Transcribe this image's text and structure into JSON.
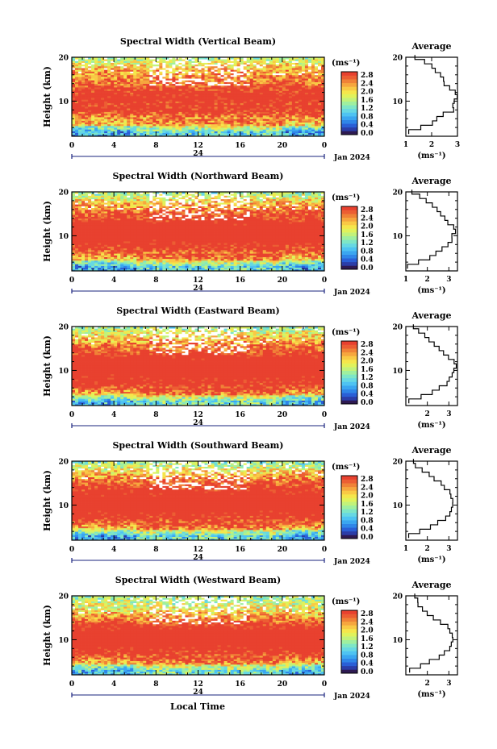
{
  "xlabel": "Local Time",
  "date_label": "Jan 2024",
  "day_label": "24",
  "colorbar": {
    "unit": "(ms⁻¹)",
    "tick_labels": [
      "2.8",
      "2.4",
      "2.0",
      "1.6",
      "1.2",
      "0.8",
      "0.4",
      "0.0"
    ],
    "colors": [
      "#2e1a52",
      "#2b3da8",
      "#2a5fd6",
      "#2f86e8",
      "#3aa6f0",
      "#4ec3f2",
      "#67d8e3",
      "#7ee6c6",
      "#9fef9f",
      "#c2f27a",
      "#e0f25b",
      "#f5e64b",
      "#f9c945",
      "#f6a63e",
      "#f08237",
      "#ec5e33",
      "#e8412f"
    ]
  },
  "avg_title": "Average",
  "avg_xlabel": "(ms⁻¹)",
  "chart_data": [
    {
      "type": "heatmap",
      "title": "Spectral Width (Vertical Beam)",
      "ylabel": "Height (km)",
      "xlim": [
        0,
        24
      ],
      "ylim": [
        2,
        20
      ],
      "x_ticks": [
        "0",
        "4",
        "8",
        "12",
        "16",
        "20",
        "0"
      ],
      "y_ticks": [
        "20",
        "10"
      ],
      "z_range": [
        0.0,
        2.8
      ],
      "profile": {
        "title": "Average",
        "xlabel": "(ms⁻¹)",
        "x_ticks": [
          "1",
          "2",
          "3"
        ],
        "xlim": [
          1,
          3
        ],
        "ylim": [
          2,
          20
        ],
        "height": [
          3,
          4,
          5,
          6,
          7,
          8,
          9,
          10,
          11,
          12,
          13,
          14,
          15,
          16,
          17,
          18,
          19,
          20
        ],
        "width": [
          1.1,
          1.6,
          2.0,
          2.2,
          2.5,
          2.9,
          2.8,
          2.9,
          3.0,
          2.9,
          2.7,
          2.5,
          2.4,
          2.3,
          2.2,
          2.0,
          1.7,
          1.4
        ]
      }
    },
    {
      "type": "heatmap",
      "title": "Spectral Width (Northward Beam)",
      "ylabel": "Height (km)",
      "xlim": [
        0,
        24
      ],
      "ylim": [
        2,
        20
      ],
      "x_ticks": [
        "0",
        "4",
        "8",
        "12",
        "16",
        "20",
        "0"
      ],
      "y_ticks": [
        "20",
        "10"
      ],
      "z_range": [
        0.0,
        2.8
      ],
      "profile": {
        "title": "Average",
        "xlabel": "(ms⁻¹)",
        "x_ticks": [
          "1",
          "2",
          "3"
        ],
        "xlim": [
          1,
          3.4
        ],
        "ylim": [
          2,
          20
        ],
        "height": [
          3,
          4,
          5,
          6,
          7,
          8,
          9,
          10,
          11,
          12,
          13,
          14,
          15,
          16,
          17,
          18,
          19,
          20
        ],
        "width": [
          1.1,
          1.6,
          2.1,
          2.4,
          2.7,
          2.9,
          3.1,
          3.2,
          3.3,
          3.2,
          3.0,
          2.8,
          2.6,
          2.4,
          2.2,
          1.9,
          1.6,
          1.3
        ]
      }
    },
    {
      "type": "heatmap",
      "title": "Spectral Width (Eastward Beam)",
      "ylabel": "Height (km)",
      "xlim": [
        0,
        24
      ],
      "ylim": [
        2,
        20
      ],
      "x_ticks": [
        "0",
        "4",
        "8",
        "12",
        "16",
        "20",
        "0"
      ],
      "y_ticks": [
        "20",
        "10"
      ],
      "z_range": [
        0.0,
        2.8
      ],
      "profile": {
        "title": "Average",
        "xlabel": "(ms⁻¹)",
        "x_ticks": [
          "2",
          "3"
        ],
        "xlim": [
          1,
          3.4
        ],
        "ylim": [
          2,
          20
        ],
        "height": [
          3,
          4,
          5,
          6,
          7,
          8,
          9,
          10,
          11,
          12,
          13,
          14,
          15,
          16,
          17,
          18,
          19,
          20
        ],
        "width": [
          1.2,
          1.7,
          2.2,
          2.6,
          2.9,
          3.0,
          3.1,
          3.2,
          3.3,
          3.2,
          3.0,
          2.7,
          2.5,
          2.3,
          2.1,
          1.9,
          1.6,
          1.3
        ]
      }
    },
    {
      "type": "heatmap",
      "title": "Spectral Width (Southward Beam)",
      "ylabel": "Height (km)",
      "xlim": [
        0,
        24
      ],
      "ylim": [
        2,
        20
      ],
      "x_ticks": [
        "0",
        "4",
        "8",
        "12",
        "16",
        "20",
        "0"
      ],
      "y_ticks": [
        "20",
        "10"
      ],
      "z_range": [
        0.0,
        2.8
      ],
      "profile": {
        "title": "Average",
        "xlabel": "(ms⁻¹)",
        "x_ticks": [
          "1",
          "2",
          "3"
        ],
        "xlim": [
          1,
          3.4
        ],
        "ylim": [
          2,
          20
        ],
        "height": [
          3,
          4,
          5,
          6,
          7,
          8,
          9,
          10,
          11,
          12,
          13,
          14,
          15,
          16,
          17,
          18,
          19,
          20
        ],
        "width": [
          1.1,
          1.6,
          2.1,
          2.5,
          2.8,
          3.0,
          3.1,
          3.2,
          3.2,
          3.1,
          3.0,
          2.8,
          2.6,
          2.3,
          2.1,
          1.8,
          1.5,
          1.3
        ]
      }
    },
    {
      "type": "heatmap",
      "title": "Spectral Width (Westward Beam)",
      "ylabel": "Height (km)",
      "xlim": [
        0,
        24
      ],
      "ylim": [
        2,
        20
      ],
      "x_ticks": [
        "0",
        "4",
        "8",
        "12",
        "16",
        "20",
        "0"
      ],
      "y_ticks": [
        "20",
        "10"
      ],
      "z_range": [
        0.0,
        2.8
      ],
      "profile": {
        "title": "Average",
        "xlabel": "(ms⁻¹)",
        "x_ticks": [
          "2",
          "3"
        ],
        "xlim": [
          1,
          3.4
        ],
        "ylim": [
          2,
          20
        ],
        "height": [
          3,
          4,
          5,
          6,
          7,
          8,
          9,
          10,
          11,
          12,
          13,
          14,
          15,
          16,
          17,
          18,
          19,
          20
        ],
        "width": [
          1.2,
          1.7,
          2.1,
          2.5,
          2.8,
          3.0,
          3.1,
          3.2,
          3.2,
          3.1,
          2.9,
          2.6,
          2.3,
          2.0,
          1.8,
          1.6,
          1.5,
          1.4
        ]
      }
    }
  ]
}
